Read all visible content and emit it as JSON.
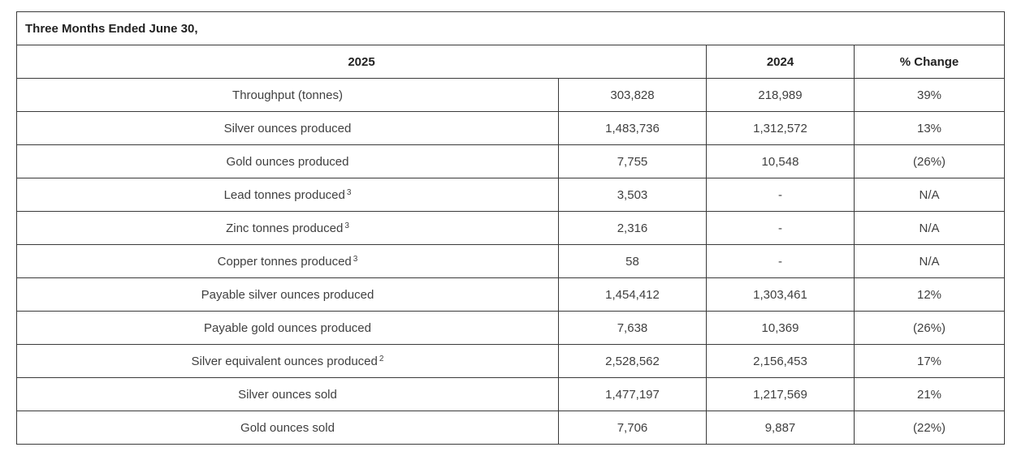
{
  "table": {
    "caption": "Three Months Ended June 30,",
    "headers": [
      "",
      "2025",
      "2024",
      "% Change"
    ],
    "rows": [
      {
        "label": "Throughput (tonnes)",
        "note": "",
        "v2025": "303,828",
        "v2024": "218,989",
        "change": "39%"
      },
      {
        "label": "Silver ounces produced",
        "note": "",
        "v2025": "1,483,736",
        "v2024": "1,312,572",
        "change": "13%"
      },
      {
        "label": "Gold ounces produced",
        "note": "",
        "v2025": "7,755",
        "v2024": "10,548",
        "change": "(26%)"
      },
      {
        "label": "Lead tonnes produced",
        "note": "3",
        "v2025": "3,503",
        "v2024": "-",
        "change": "N/A"
      },
      {
        "label": "Zinc tonnes produced",
        "note": "3",
        "v2025": "2,316",
        "v2024": "-",
        "change": "N/A"
      },
      {
        "label": "Copper tonnes produced",
        "note": "3",
        "v2025": "58",
        "v2024": "-",
        "change": "N/A"
      },
      {
        "label": "Payable silver ounces produced",
        "note": "",
        "v2025": "1,454,412",
        "v2024": "1,303,461",
        "change": "12%"
      },
      {
        "label": "Payable gold ounces produced",
        "note": "",
        "v2025": "7,638",
        "v2024": "10,369",
        "change": "(26%)"
      },
      {
        "label": "Silver equivalent ounces produced",
        "note": "2",
        "v2025": "2,528,562",
        "v2024": "2,156,453",
        "change": "17%"
      },
      {
        "label": "Silver ounces sold",
        "note": "",
        "v2025": "1,477,197",
        "v2024": "1,217,569",
        "change": "21%"
      },
      {
        "label": "Gold ounces sold",
        "note": "",
        "v2025": "7,706",
        "v2024": "9,887",
        "change": "(22%)"
      }
    ]
  }
}
